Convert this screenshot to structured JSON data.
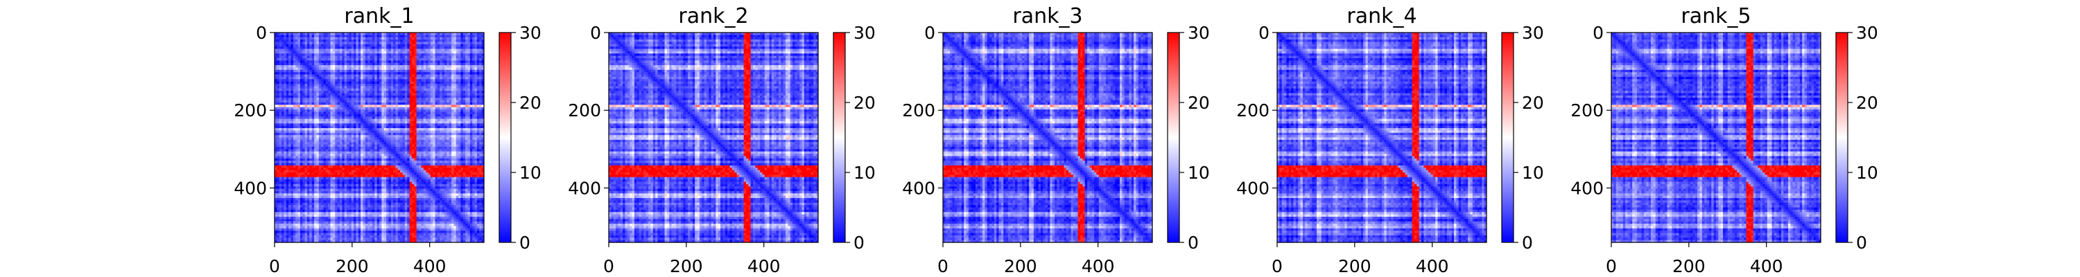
{
  "chart_data": [
    {
      "type": "heatmap",
      "title": "rank_1",
      "xlim": [
        0,
        540
      ],
      "ylim": [
        540,
        0
      ],
      "xticks": [
        0,
        200,
        400
      ],
      "yticks": [
        0,
        200,
        400
      ],
      "colorbar": {
        "min": 0,
        "max": 30,
        "ticks": [
          0,
          10,
          20,
          30
        ],
        "colormap": "bwr"
      },
      "features": {
        "high_band_index": [
          340,
          370
        ],
        "high_column_index": [
          350,
          365
        ],
        "diagonal_low": true,
        "secondary_row_index": 190,
        "light_rows_index": [
          50,
          90,
          190,
          230,
          250,
          270,
          310,
          420,
          470,
          500
        ],
        "light_cols_index": [
          60,
          110,
          150,
          230,
          280,
          410,
          460,
          500
        ]
      }
    },
    {
      "type": "heatmap",
      "title": "rank_2",
      "xlim": [
        0,
        540
      ],
      "ylim": [
        540,
        0
      ],
      "xticks": [
        0,
        200,
        400
      ],
      "yticks": [
        0,
        200,
        400
      ],
      "colorbar": {
        "min": 0,
        "max": 30,
        "ticks": [
          0,
          10,
          20,
          30
        ],
        "colormap": "bwr"
      },
      "features": {
        "high_band_index": [
          340,
          370
        ],
        "high_column_index": [
          350,
          365
        ],
        "diagonal_low": true,
        "secondary_row_index": 190,
        "light_rows_index": [
          50,
          90,
          190,
          230,
          250,
          270,
          310,
          420,
          470,
          500
        ],
        "light_cols_index": [
          60,
          110,
          150,
          230,
          280,
          410,
          460,
          500
        ]
      }
    },
    {
      "type": "heatmap",
      "title": "rank_3",
      "xlim": [
        0,
        540
      ],
      "ylim": [
        540,
        0
      ],
      "xticks": [
        0,
        200,
        400
      ],
      "yticks": [
        0,
        200,
        400
      ],
      "colorbar": {
        "min": 0,
        "max": 30,
        "ticks": [
          0,
          10,
          20,
          30
        ],
        "colormap": "bwr"
      },
      "features": {
        "high_band_index": [
          340,
          370
        ],
        "high_column_index": [
          350,
          365
        ],
        "diagonal_low": true,
        "secondary_row_index": 190,
        "light_rows_index": [
          50,
          90,
          190,
          230,
          250,
          270,
          310,
          420,
          470,
          500
        ],
        "light_cols_index": [
          60,
          110,
          150,
          230,
          280,
          410,
          460,
          500
        ]
      }
    },
    {
      "type": "heatmap",
      "title": "rank_4",
      "xlim": [
        0,
        540
      ],
      "ylim": [
        540,
        0
      ],
      "xticks": [
        0,
        200,
        400
      ],
      "yticks": [
        0,
        200,
        400
      ],
      "colorbar": {
        "min": 0,
        "max": 30,
        "ticks": [
          0,
          10,
          20,
          30
        ],
        "colormap": "bwr"
      },
      "features": {
        "high_band_index": [
          340,
          370
        ],
        "high_column_index": [
          350,
          365
        ],
        "diagonal_low": true,
        "secondary_row_index": 190,
        "light_rows_index": [
          50,
          90,
          190,
          230,
          250,
          270,
          310,
          420,
          470,
          500
        ],
        "light_cols_index": [
          60,
          110,
          150,
          230,
          280,
          410,
          460,
          500
        ]
      }
    },
    {
      "type": "heatmap",
      "title": "rank_5",
      "xlim": [
        0,
        540
      ],
      "ylim": [
        540,
        0
      ],
      "xticks": [
        0,
        200,
        400
      ],
      "yticks": [
        0,
        200,
        400
      ],
      "colorbar": {
        "min": 0,
        "max": 30,
        "ticks": [
          0,
          10,
          20,
          30
        ],
        "colormap": "bwr"
      },
      "features": {
        "high_band_index": [
          340,
          370
        ],
        "high_column_index": [
          350,
          365
        ],
        "diagonal_low": true,
        "secondary_row_index": 190,
        "light_rows_index": [
          50,
          90,
          190,
          230,
          250,
          270,
          310,
          420,
          470,
          500
        ],
        "light_cols_index": [
          60,
          110,
          150,
          230,
          280,
          410,
          460,
          500
        ]
      }
    }
  ]
}
